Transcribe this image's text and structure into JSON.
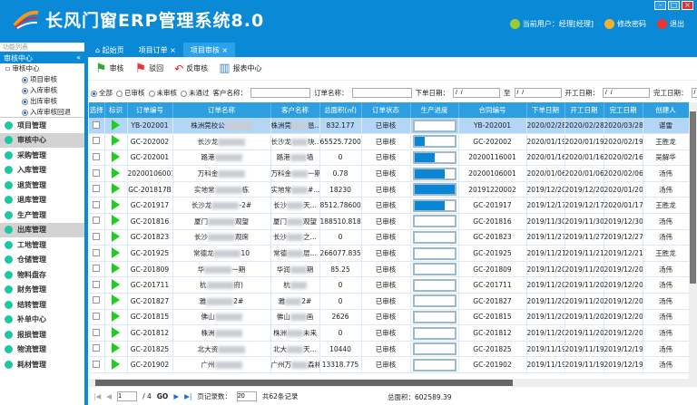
{
  "app": {
    "title": "长风门窗ERP管理系统8.0",
    "user": "当前用户：经理[经理]",
    "change_pwd": "修改密码",
    "logout": "退出"
  },
  "left": {
    "panel_title": "功能列表",
    "section": "审核中心",
    "tree": [
      "审核中心",
      "项目审核",
      "入库审核",
      "出库审核",
      "入库审核回退"
    ],
    "menu": [
      "项目管理",
      "审核中心",
      "采购管理",
      "入库管理",
      "退货管理",
      "退库管理",
      "生产管理",
      "出库管理",
      "工地管理",
      "仓储管理",
      "物料盘存",
      "财务管理",
      "结转管理",
      "补单中心",
      "报损管理",
      "物流管理",
      "耗材管理"
    ],
    "active": [
      "审核中心",
      "出库管理"
    ]
  },
  "tabs": [
    "起始页",
    "项目订单",
    "项目审核"
  ],
  "toolbar": {
    "approve": "审核",
    "reject": "驳回",
    "unapprove": "反审核",
    "report": "报表中心"
  },
  "filter": {
    "all": "全部",
    "approved": "已审核",
    "unapproved": "未审核",
    "failed": "未通过",
    "customer": "客户名称：",
    "order": "订单名称：",
    "order_date": "下单日期：",
    "to": "至",
    "start_date": "开工日期：",
    "finish_date": "完工日期：",
    "date_placeholder": " /  /"
  },
  "columns": [
    "选择",
    "标识",
    "订单编号",
    "订单名称",
    "客户名称",
    "总面积(㎡)",
    "订单状态",
    "生产进度",
    "合同编号",
    "下单日期",
    "开工日期",
    "完工日期",
    "创建人"
  ],
  "rows": [
    [
      "YB-202001",
      "株洲莞校公",
      "",
      "株洲莞",
      "恳...",
      "832.177",
      "已审核",
      0,
      "YB-202001",
      "2020/02/28",
      "2020/02/28",
      "2020/03/28",
      "谌雷"
    ],
    [
      "GC-202002",
      "长沙龙",
      "",
      "长沙龙",
      "块...",
      "65525.7200...",
      "已审核",
      25,
      "GC-202002",
      "2020/01/19",
      "2020/01/19",
      "2020/02/19",
      "王胜龙"
    ],
    [
      "GC-202001",
      "路港",
      "",
      "路港",
      "墙",
      "0",
      "已审核",
      50,
      "20200116001",
      "2020/01/16",
      "2020/01/16",
      "2020/02/16",
      "吴解华"
    ],
    [
      "20200106001",
      "万科金",
      "",
      "万科金",
      "一期",
      "0.78",
      "已审核",
      75,
      "20200106001",
      "2020/01/06",
      "2020/01/06",
      "2020/02/06",
      "汤伟"
    ],
    [
      "GC-201817B",
      "实地常",
      "栋",
      "实地常",
      "#...",
      "18230",
      "已审核",
      100,
      "20191220002",
      "2019/12/20",
      "2019/12/20",
      "2020/01/20",
      "汤伟"
    ],
    [
      "GC-201917",
      "长沙龙",
      "-2#",
      "长沙",
      "天...",
      "8512.78600...",
      "已审核",
      75,
      "GC-201917",
      "2019/12/17",
      "2019/12/17",
      "2020/01/17",
      "王胜龙"
    ],
    [
      "GC-201816",
      "厦门",
      "观望",
      "厦门",
      "观望",
      "188510.818",
      "已审核",
      0,
      "GC-201816",
      "2019/11/30",
      "2019/11/30",
      "2019/12/30",
      "汤伟"
    ],
    [
      "GC-201823",
      "长沙",
      "观席",
      "长沙",
      "之...",
      "0",
      "已审核",
      0,
      "GC-201823",
      "2019/11/27",
      "2019/11/27",
      "2019/12/27",
      "汤伟"
    ],
    [
      "GC-201925",
      "常德龙",
      "10",
      "常德",
      "层...",
      "266077.835...",
      "已审核",
      0,
      "GC-201925",
      "2019/11/21",
      "2019/11/21",
      "2019/12/21",
      "王胜龙"
    ],
    [
      "GC-201809",
      "华",
      "一期",
      "华润",
      "期",
      "85.25",
      "已审核",
      0,
      "GC-201809",
      "2019/11/20",
      "2019/11/20",
      "2019/12/20",
      "汤伟"
    ],
    [
      "GC-201711",
      "杭",
      "府)",
      "杭",
      "",
      "0",
      "已审核",
      0,
      "GC-201711",
      "2019/11/20",
      "2019/11/20",
      "2019/12/20",
      "汤伟"
    ],
    [
      "GC-201827",
      "雅",
      "2#",
      "雅",
      "2#",
      "0",
      "已审核",
      0,
      "GC-201827",
      "2019/11/20",
      "2019/11/20",
      "2019/12/20",
      "汤伟"
    ],
    [
      "GC-201815",
      "佛山",
      "",
      "佛山",
      "画",
      "2626",
      "已审核",
      0,
      "GC-201815",
      "2019/11/20",
      "2019/11/20",
      "2019/12/20",
      "汤伟"
    ],
    [
      "GC-201812",
      "株洲",
      "",
      "株洲",
      "未来",
      "0",
      "已审核",
      0,
      "GC-201812",
      "2019/11/20",
      "2019/11/20",
      "2019/12/20",
      "汤伟"
    ],
    [
      "GC-201825",
      "北大资",
      "",
      "北大",
      "天...",
      "10440",
      "已审核",
      0,
      "GC-201825",
      "2019/11/19",
      "2019/11/19",
      "2019/12/19",
      "汤伟"
    ],
    [
      "GC-201902",
      "广州",
      "",
      "广州万",
      "森林",
      "13318.775",
      "已审核",
      0,
      "GC-201902",
      "2019/11/19",
      "2019/11/19",
      "2019/12/19",
      "汤伟"
    ]
  ],
  "pager": {
    "page": "1",
    "total_pages": "/ 4",
    "go": "GO",
    "page_size_label": "页记录数：",
    "page_size": "20",
    "total": "共62条记录",
    "area": "总面积：602589.39"
  },
  "colors": {
    "header": "#0a8ad6",
    "grid_header": "#2d9fe0",
    "progress": "#0a86d5",
    "flag": "#1ed01e"
  }
}
